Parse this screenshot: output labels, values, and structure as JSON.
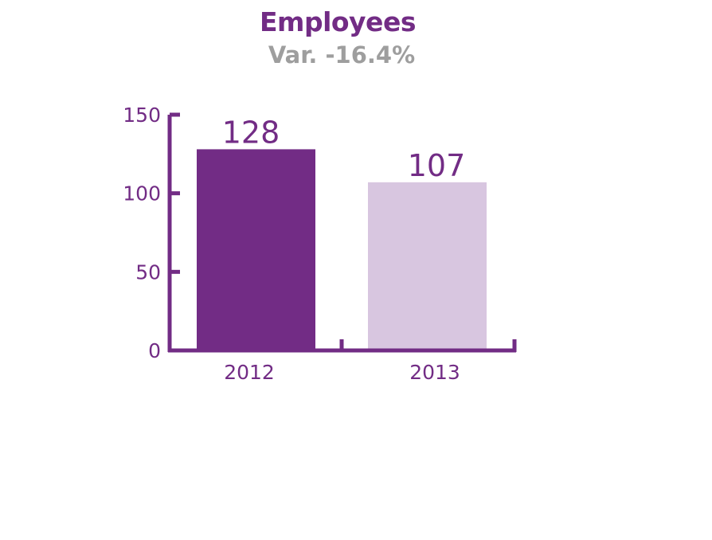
{
  "chart_data": {
    "type": "bar",
    "title": "Employees",
    "subtitle": "Var. -16.4%",
    "categories": [
      "2012",
      "2013"
    ],
    "values": [
      128,
      107
    ],
    "data_labels": [
      "128",
      "107"
    ],
    "ylim": [
      0,
      150
    ],
    "yticks": [
      0,
      50,
      100,
      150
    ],
    "grid": false,
    "legend": "none",
    "bar_colors": [
      "#722c85",
      "#d8c6e0"
    ],
    "axis_color": "#722c85"
  }
}
